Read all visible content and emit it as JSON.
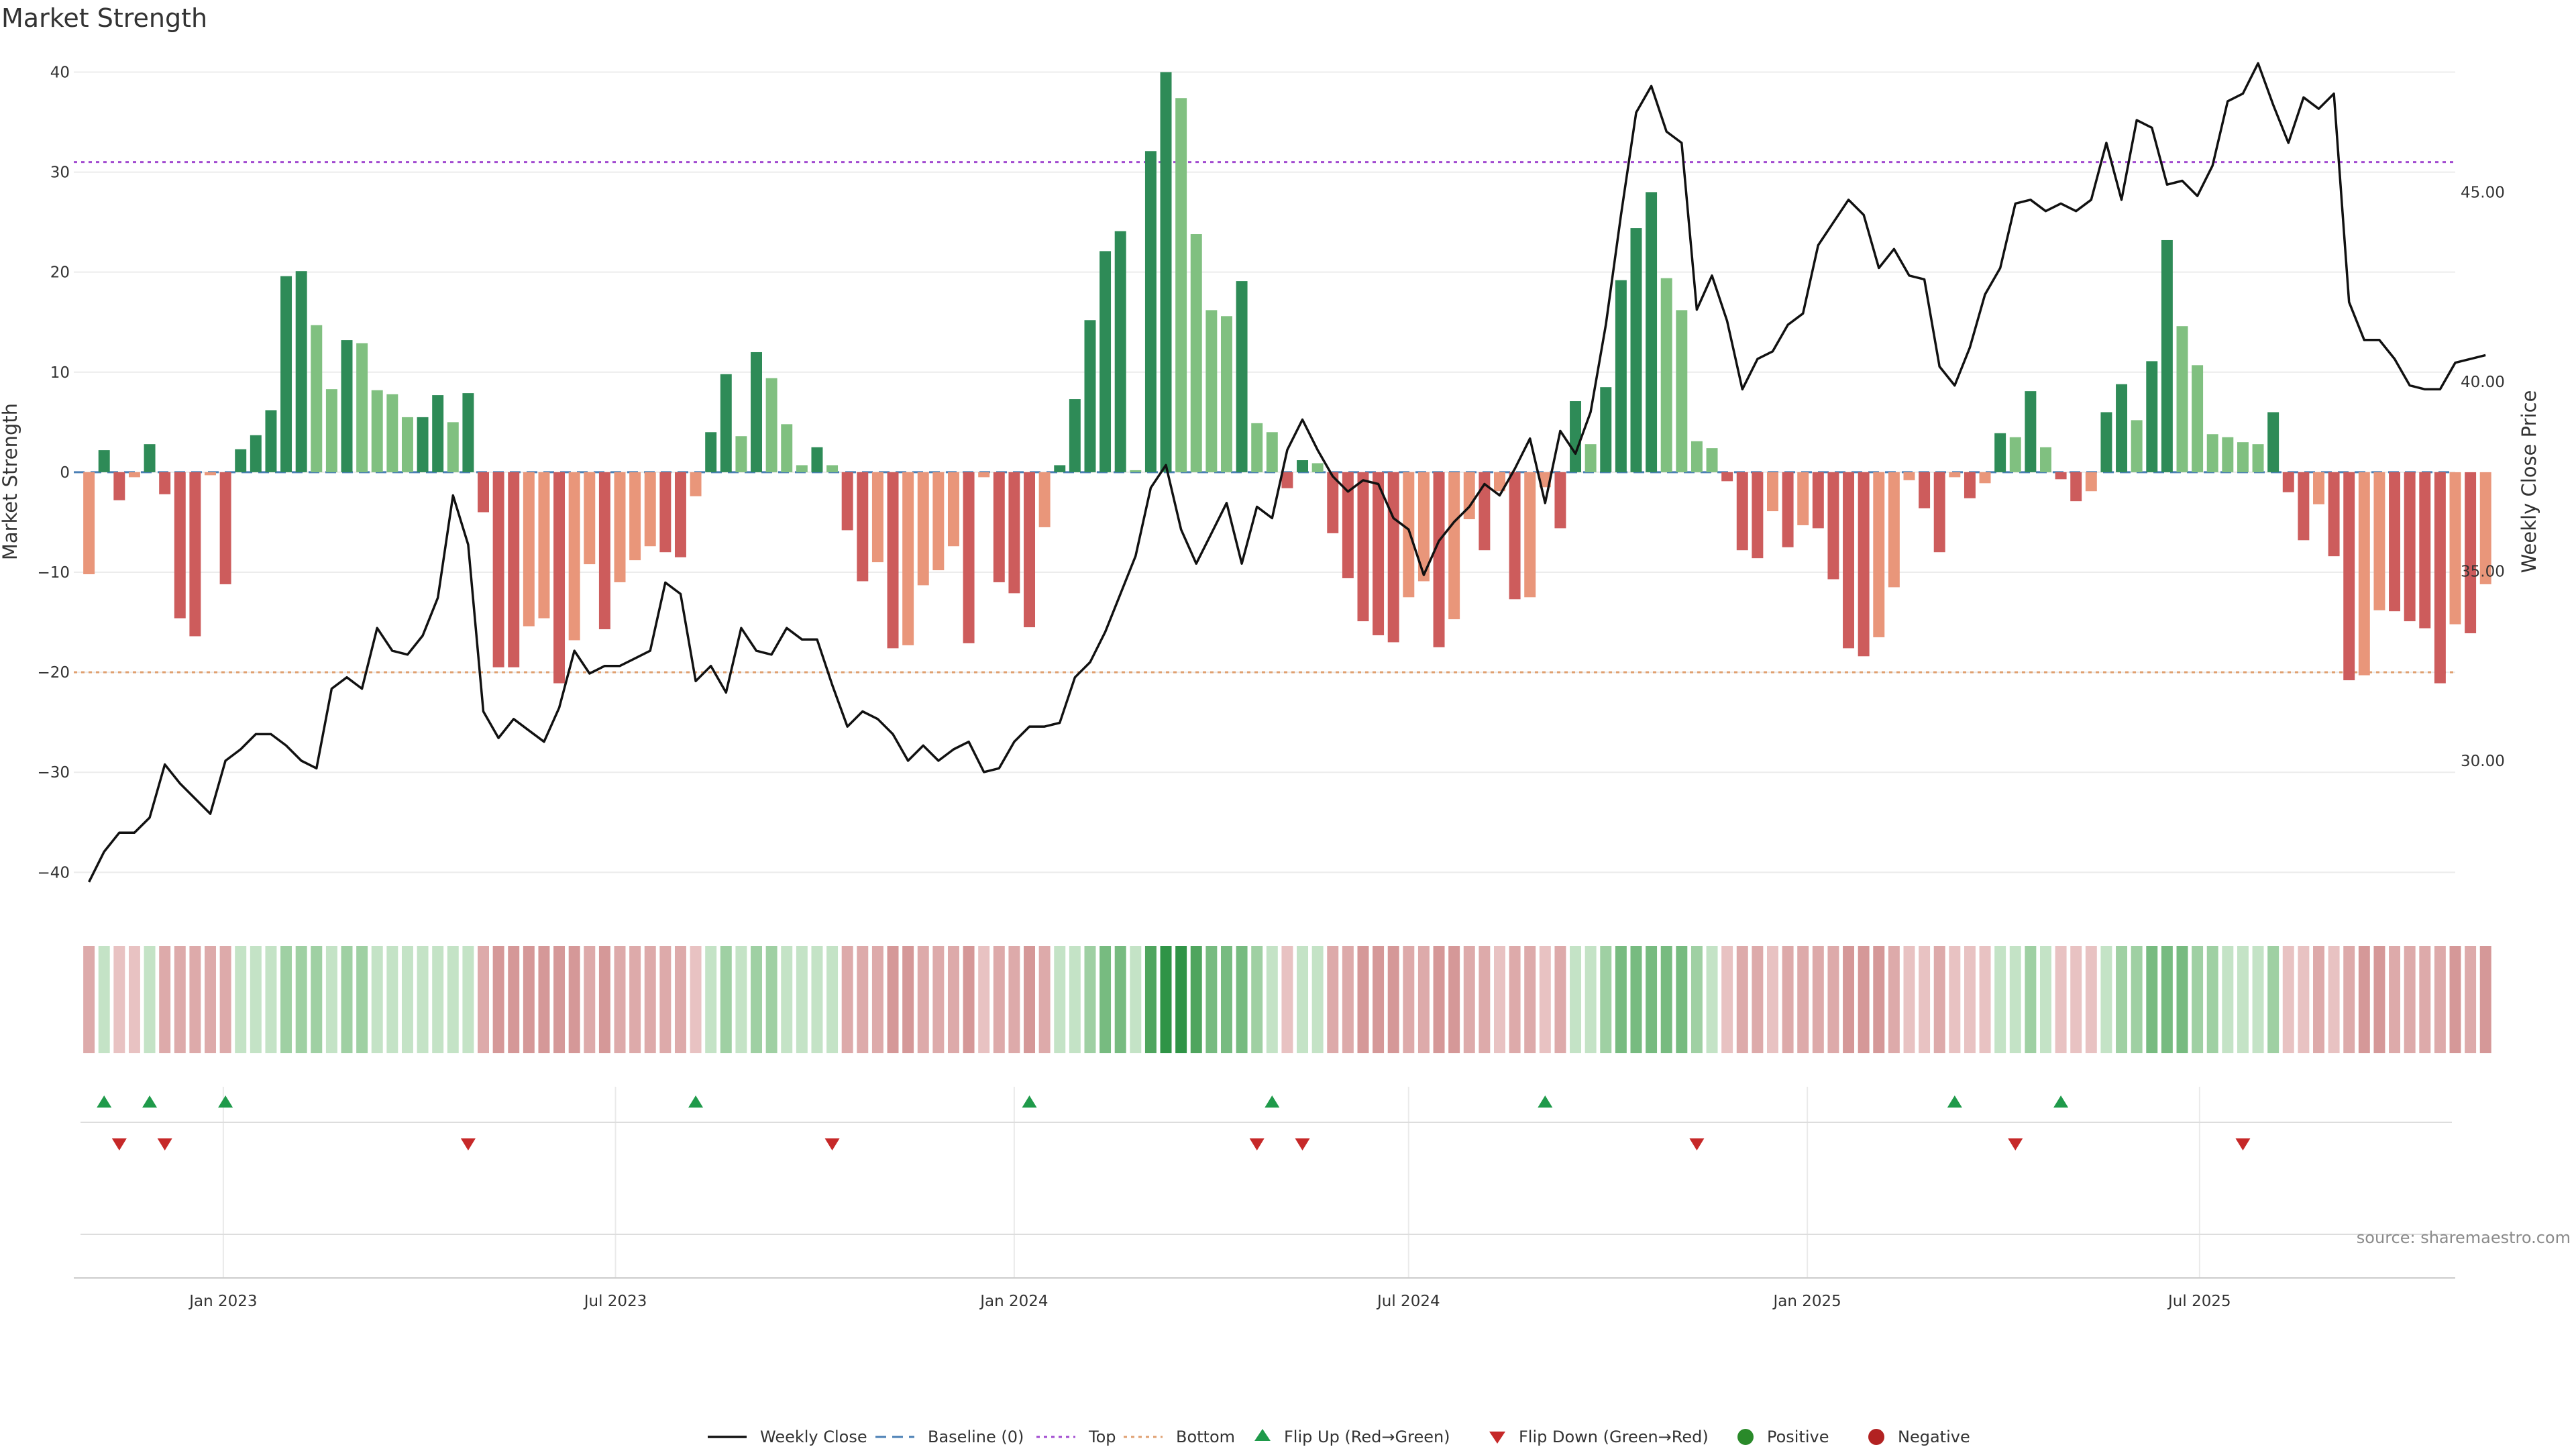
{
  "chart_data": {
    "type": "bar",
    "title": "Market Strength",
    "ylabel_left": "Market Strength",
    "ylabel_right": "Weekly Close Price",
    "ylim_left": [
      -44,
      40.5
    ],
    "yticks_left": [
      "−40",
      "−30",
      "−20",
      "−10",
      "0",
      "10",
      "20",
      "30",
      "40"
    ],
    "ylim_right": [
      26,
      48.3
    ],
    "yticks_right": [
      "30.00",
      "35.00",
      "40.00",
      "45.00"
    ],
    "x_range": [
      "2022-10-24",
      "2025-10-27"
    ],
    "x_ticks": [
      {
        "date": "2023-01-01",
        "label": "Jan 2023"
      },
      {
        "date": "2023-07-01",
        "label": "Jul 2023"
      },
      {
        "date": "2024-01-01",
        "label": "Jan 2024"
      },
      {
        "date": "2024-07-01",
        "label": "Jul 2024"
      },
      {
        "date": "2025-01-01",
        "label": "Jan 2025"
      },
      {
        "date": "2025-07-01",
        "label": "Jul 2025"
      }
    ],
    "first_week": "2022-10-31",
    "top_line": 31,
    "bottom_line": -20,
    "strength": [
      -10.2,
      2.2,
      -2.8,
      -0.5,
      2.8,
      -2.2,
      -14.6,
      -16.4,
      -0.3,
      -11.2,
      2.3,
      3.7,
      6.2,
      19.6,
      20.1,
      14.7,
      8.3,
      13.2,
      12.9,
      8.2,
      7.8,
      5.5,
      5.5,
      7.7,
      5,
      7.9,
      -4,
      -19.5,
      -19.5,
      -15.4,
      -14.6,
      -21.1,
      -16.8,
      -9.2,
      -15.7,
      -11,
      -8.8,
      -7.4,
      -8,
      -8.5,
      -2.4,
      4,
      9.8,
      3.6,
      12,
      9.4,
      4.8,
      0.7,
      2.5,
      0.7,
      -5.8,
      -10.9,
      -9,
      -17.6,
      -17.3,
      -11.3,
      -9.8,
      -7.4,
      -17.1,
      -0.5,
      -11,
      -12.1,
      -15.5,
      -5.5,
      0.7,
      7.3,
      15.2,
      22.1,
      24.1,
      0.2,
      32.1,
      40,
      37.4,
      23.8,
      16.2,
      15.6,
      19.1,
      4.9,
      4,
      -1.6,
      1.2,
      0.9,
      -6.1,
      -10.6,
      -14.9,
      -16.3,
      -17,
      -12.5,
      -10.9,
      -17.5,
      -14.7,
      -4.7,
      -7.8,
      -1.9,
      -12.7,
      -12.5,
      -1.5,
      -5.6,
      7.1,
      2.8,
      8.5,
      19.2,
      24.4,
      28,
      19.4,
      16.2,
      3.1,
      2.4,
      -0.9,
      -7.8,
      -8.6,
      -3.9,
      -7.5,
      -5.3,
      -5.6,
      -10.7,
      -17.6,
      -18.4,
      -16.5,
      -11.5,
      -0.8,
      -3.6,
      -8,
      -0.5,
      -2.6,
      -1.1,
      3.9,
      3.5,
      8.1,
      2.5,
      -0.7,
      -2.9,
      -1.9,
      6,
      8.8,
      5.2,
      11.1,
      23.2,
      14.6,
      10.7,
      3.8,
      3.5,
      3,
      2.8,
      6,
      -2,
      -6.8,
      -3.2,
      -8.4,
      -20.8,
      -20.3,
      -13.8,
      -13.9,
      -14.9,
      -15.6,
      -21.1,
      -15.2,
      -16.1,
      -11.2
    ],
    "shade_level": [
      2,
      1,
      1,
      1,
      1,
      2,
      2,
      2,
      2,
      2,
      1,
      1,
      1,
      2,
      2,
      2,
      1,
      2,
      2,
      1,
      1,
      1,
      1,
      1,
      1,
      1,
      2,
      3,
      3,
      3,
      3,
      3,
      3,
      2,
      3,
      2,
      2,
      2,
      2,
      2,
      1,
      1,
      2,
      1,
      2,
      2,
      1,
      1,
      1,
      1,
      2,
      2,
      2,
      3,
      3,
      2,
      2,
      2,
      3,
      1,
      2,
      2,
      3,
      2,
      1,
      1,
      2,
      3,
      3,
      1,
      4,
      5,
      5,
      4,
      3,
      3,
      3,
      2,
      1,
      1,
      1,
      1,
      2,
      2,
      3,
      3,
      3,
      2,
      2,
      3,
      3,
      2,
      2,
      1,
      2,
      2,
      1,
      2,
      1,
      1,
      2,
      3,
      3,
      3,
      3,
      3,
      2,
      1,
      1,
      2,
      2,
      1,
      2,
      2,
      2,
      2,
      3,
      3,
      3,
      2,
      1,
      1,
      2,
      1,
      1,
      1,
      1,
      1,
      2,
      1,
      1,
      1,
      1,
      1,
      2,
      2,
      3,
      3,
      3,
      2,
      2,
      1,
      1,
      1,
      2,
      1,
      1,
      2,
      1,
      2,
      3,
      3,
      2,
      2,
      2,
      2,
      3,
      2,
      3,
      2
    ],
    "close": [
      26.8,
      27.6,
      28.1,
      28.1,
      28.5,
      29.9,
      29.4,
      29,
      28.6,
      30,
      30.3,
      30.7,
      30.7,
      30.4,
      30.0,
      29.8,
      31.9,
      32.2,
      31.9,
      33.5,
      32.9,
      32.8,
      33.3,
      34.3,
      37.0,
      35.7,
      31.3,
      30.6,
      31.1,
      30.8,
      30.5,
      31.4,
      32.9,
      32.3,
      32.5,
      32.5,
      32.7,
      32.9,
      34.7,
      34.4,
      32.1,
      32.5,
      31.8,
      33.5,
      32.9,
      32.8,
      33.5,
      33.2,
      33.2,
      32,
      30.9,
      31.3,
      31.1,
      30.7,
      30,
      30.4,
      30,
      30.3,
      30.5,
      29.7,
      29.8,
      30.5,
      30.9,
      30.9,
      31,
      32.2,
      32.6,
      33.4,
      34.4,
      35.4,
      37.2,
      37.8,
      36.1,
      35.2,
      36.0,
      36.8,
      35.2,
      36.7,
      36.4,
      38.2,
      39.0,
      38.2,
      37.5,
      37.1,
      37.4,
      37.3,
      36.4,
      36.1,
      34.9,
      35.8,
      36.3,
      36.7,
      37.3,
      37.0,
      37.7,
      38.5,
      36.8,
      38.7,
      38.1,
      39.2,
      41.5,
      44.4,
      47.1,
      47.8,
      46.6,
      46.3,
      41.9,
      42.8,
      41.6,
      39.8,
      40.6,
      40.8,
      41.5,
      41.8,
      43.6,
      44.2,
      44.8,
      44.4,
      43.0,
      43.5,
      42.8,
      42.7,
      40.4,
      39.9,
      40.9,
      42.3,
      43.0,
      44.7,
      44.8,
      44.5,
      44.7,
      44.5,
      44.8,
      46.3,
      44.8,
      46.9,
      46.7,
      45.2,
      45.3,
      44.9,
      45.7,
      47.4,
      47.6,
      48.4,
      47.3,
      46.3,
      47.5,
      47.2,
      47.6,
      42.1,
      41.1,
      41.1,
      40.6,
      39.9,
      39.8,
      39.8,
      40.5,
      40.6,
      40.7
    ],
    "flip_up_weeks": [
      1,
      4,
      9,
      40,
      62,
      78,
      96,
      123,
      130
    ],
    "flip_down_weeks": [
      2,
      5,
      25,
      49,
      77,
      80,
      106,
      127,
      142
    ],
    "source": "source: sharemaestro.com",
    "legend": [
      "Weekly Close",
      "Baseline (0)",
      "Top",
      "Bottom",
      "Flip Up (Red→Green)",
      "Flip Down (Green→Red)",
      "Positive",
      "Negative"
    ],
    "colors": {
      "pos_strong": "#2e8b57",
      "pos_weak": "#80c080",
      "neg_strong": "#cd5c5c",
      "neg_weak": "#e9967a",
      "line": "#111111",
      "baseline": "#4a7fb5",
      "top": "#a24bd0",
      "bottom": "#e0a070",
      "flip_up": "#1f9a4a",
      "flip_down": "#c62828",
      "positive_dot": "#2a8a2a",
      "negative_dot": "#b22222"
    }
  }
}
